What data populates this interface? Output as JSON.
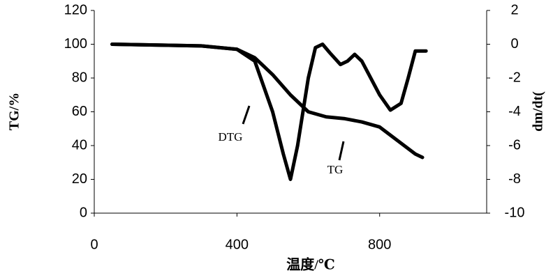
{
  "chart_data": {
    "type": "line",
    "x_label": "温度/℃",
    "y_label": "TG/%",
    "y2_label": "dm/dt(",
    "xlim": [
      0,
      1100
    ],
    "xticks": [
      0,
      400,
      800
    ],
    "ylim": [
      0,
      120
    ],
    "yticks": [
      0,
      20,
      40,
      60,
      80,
      100,
      120
    ],
    "y2lim": [
      -10,
      2
    ],
    "y2ticks": [
      -10,
      -8,
      -6,
      -4,
      -2,
      0,
      2
    ],
    "series": [
      {
        "name": "TG",
        "color": "#000000",
        "x": [
          50,
          300,
          400,
          450,
          500,
          550,
          600,
          650,
          700,
          750,
          800,
          850,
          900,
          920
        ],
        "values": [
          100,
          99,
          97,
          92,
          82,
          70,
          60,
          57,
          56,
          54,
          51,
          43,
          35,
          33
        ]
      },
      {
        "name": "DTG",
        "color": "#000000",
        "axis": "y2",
        "x": [
          50,
          300,
          400,
          450,
          500,
          530,
          550,
          570,
          600,
          620,
          640,
          660,
          690,
          710,
          730,
          750,
          800,
          830,
          860,
          880,
          900,
          930
        ],
        "values": [
          0,
          -0.1,
          -0.3,
          -1,
          -4,
          -6.5,
          -8,
          -6,
          -2,
          -0.2,
          0,
          -0.5,
          -1.2,
          -1,
          -0.6,
          -1,
          -3,
          -3.9,
          -3.5,
          -2,
          -0.4,
          -0.4
        ]
      }
    ],
    "annotations": [
      {
        "text": "DTG"
      },
      {
        "text": "TG"
      }
    ]
  }
}
